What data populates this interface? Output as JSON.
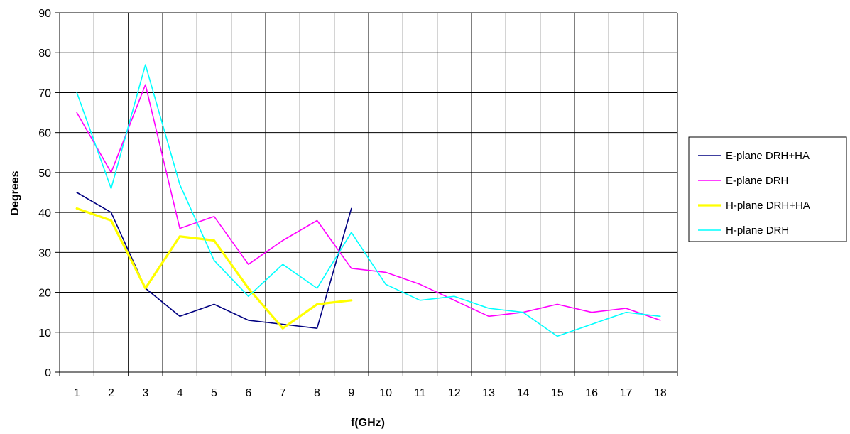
{
  "chart_data": {
    "type": "line",
    "xlabel": "f(GHz)",
    "ylabel": "Degrees",
    "categories": [
      "1",
      "2",
      "3",
      "4",
      "5",
      "6",
      "7",
      "8",
      "9",
      "10",
      "11",
      "12",
      "13",
      "14",
      "15",
      "16",
      "17",
      "18"
    ],
    "ylim": [
      0,
      90
    ],
    "yticks": [
      0,
      10,
      20,
      30,
      40,
      50,
      60,
      70,
      80,
      90
    ],
    "grid": true,
    "legend_position": "right",
    "series": [
      {
        "name": "E-plane DRH+HA",
        "color": "#000080",
        "width": "normal",
        "values": [
          45,
          40,
          21,
          14,
          17,
          13,
          12,
          11,
          41,
          null,
          null,
          null,
          null,
          null,
          null,
          null,
          null,
          null
        ]
      },
      {
        "name": "E-plane DRH",
        "color": "#ff00ff",
        "width": "normal",
        "values": [
          65,
          50,
          72,
          36,
          39,
          27,
          33,
          38,
          26,
          25,
          22,
          18,
          14,
          15,
          17,
          15,
          16,
          13
        ]
      },
      {
        "name": "H-plane DRH+HA",
        "color": "#ffff00",
        "width": "thick",
        "values": [
          41,
          38,
          21,
          34,
          33,
          21,
          11,
          17,
          18,
          null,
          null,
          null,
          null,
          null,
          null,
          null,
          null,
          null
        ]
      },
      {
        "name": "H-plane DRH",
        "color": "#00ffff",
        "width": "normal",
        "values": [
          70,
          46,
          77,
          47,
          28,
          19,
          27,
          21,
          35,
          22,
          18,
          19,
          16,
          15,
          9,
          12,
          15,
          14
        ]
      }
    ]
  }
}
